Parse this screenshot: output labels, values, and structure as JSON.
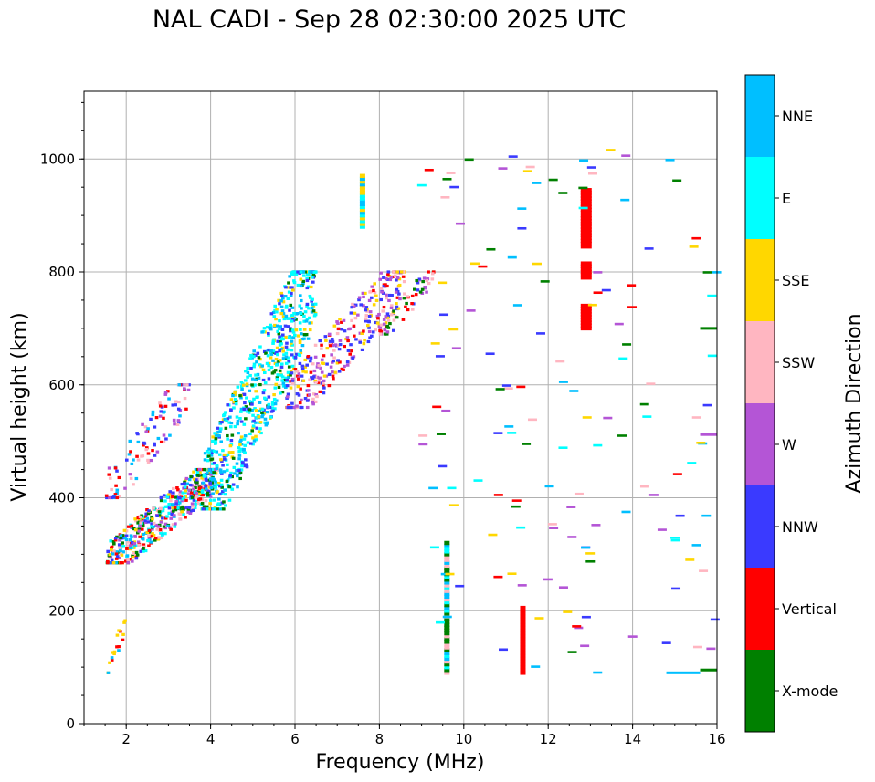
{
  "chart_data": {
    "type": "scatter",
    "title": "NAL CADI - Sep 28 02:30:00 2025 UTC",
    "xlabel": "Frequency (MHz)",
    "ylabel": "Virtual height (km)",
    "xlim": [
      1,
      16
    ],
    "ylim": [
      0,
      1120
    ],
    "xticks": [
      2,
      4,
      6,
      8,
      10,
      12,
      14,
      16
    ],
    "yticks": [
      0,
      200,
      400,
      600,
      800,
      1000
    ],
    "grid": true,
    "colorbar": {
      "label": "Azimuth Direction",
      "categories": [
        {
          "name": "X-mode",
          "color": "#008000"
        },
        {
          "name": "Vertical",
          "color": "#ff0000"
        },
        {
          "name": "NNW",
          "color": "#3a3aff"
        },
        {
          "name": "W",
          "color": "#b455d6"
        },
        {
          "name": "SSW",
          "color": "#ffb6c1"
        },
        {
          "name": "SSE",
          "color": "#ffd700"
        },
        {
          "name": "E",
          "color": "#00ffff"
        },
        {
          "name": "NNE",
          "color": "#00bfff"
        }
      ]
    },
    "clusters": [
      {
        "name": "low-frequency trace",
        "f_min": 1.55,
        "f_max": 4.2,
        "h_min": 285,
        "h_max": 450,
        "count": 520,
        "mix": [
          "X-mode",
          "Vertical",
          "NNW",
          "NNE",
          "E",
          "SSW",
          "SSE",
          "W"
        ]
      },
      {
        "name": "upper low-frequency trace",
        "f_min": 1.5,
        "f_max": 3.5,
        "h_min": 400,
        "h_max": 600,
        "count": 110,
        "mix": [
          "SSW",
          "Vertical",
          "NNW",
          "W",
          "NNE"
        ]
      },
      {
        "name": "main F trace",
        "f_min": 3.8,
        "f_max": 6.5,
        "h_min": 380,
        "h_max": 800,
        "count": 700,
        "mix": [
          "E",
          "E",
          "NNE",
          "X-mode",
          "SSE",
          "E",
          "NNE",
          "NNW"
        ]
      },
      {
        "name": "W/NNW trace",
        "f_min": 5.8,
        "f_max": 8.6,
        "h_min": 560,
        "h_max": 800,
        "count": 330,
        "mix": [
          "W",
          "NNW",
          "W",
          "NNW",
          "Vertical",
          "SSE",
          "SSW"
        ]
      },
      {
        "name": "far trace",
        "f_min": 8.0,
        "f_max": 9.3,
        "h_min": 690,
        "h_max": 800,
        "count": 60,
        "mix": [
          "W",
          "Vertical",
          "NNW",
          "X-mode",
          "SSW"
        ]
      },
      {
        "name": "sporadic-E low",
        "f_min": 1.55,
        "f_max": 2.0,
        "h_min": 90,
        "h_max": 185,
        "count": 18,
        "mix": [
          "SSE",
          "SSE",
          "NNE",
          "Vertical"
        ]
      }
    ],
    "columns": [
      {
        "freq": 9.6,
        "h_min": 90,
        "h_max": 320,
        "mix": [
          "X-mode",
          "NNE",
          "E",
          "SSW",
          "X-mode"
        ]
      },
      {
        "freq": 11.4,
        "h_min": 90,
        "h_max": 205,
        "mix": [
          "Vertical"
        ]
      },
      {
        "freq": 12.9,
        "h_min": 845,
        "h_max": 945,
        "mix": [
          "Vertical"
        ]
      },
      {
        "freq": 12.9,
        "h_min": 790,
        "h_max": 815,
        "mix": [
          "Vertical"
        ]
      },
      {
        "freq": 12.9,
        "h_min": 700,
        "h_max": 740,
        "mix": [
          "Vertical"
        ]
      },
      {
        "freq": 7.6,
        "h_min": 880,
        "h_max": 970,
        "mix": [
          "SSE",
          "NNE",
          "E"
        ]
      }
    ],
    "sparse_region": {
      "f_min": 9.0,
      "f_max": 16.0,
      "h_min": 85,
      "h_max": 1020,
      "count": 150,
      "mix": [
        "SSE",
        "NNW",
        "W",
        "SSW",
        "Vertical",
        "E",
        "NNE",
        "X-mode"
      ]
    },
    "horizontal_segments": [
      {
        "f_start": 14.8,
        "f_end": 15.6,
        "h": 90,
        "color": "NNE"
      },
      {
        "f_start": 15.6,
        "f_end": 16.0,
        "h": 95,
        "color": "X-mode"
      },
      {
        "f_start": 15.6,
        "f_end": 16.0,
        "h": 700,
        "color": "X-mode"
      },
      {
        "f_start": 15.6,
        "f_end": 16.0,
        "h": 512,
        "color": "W"
      }
    ]
  }
}
